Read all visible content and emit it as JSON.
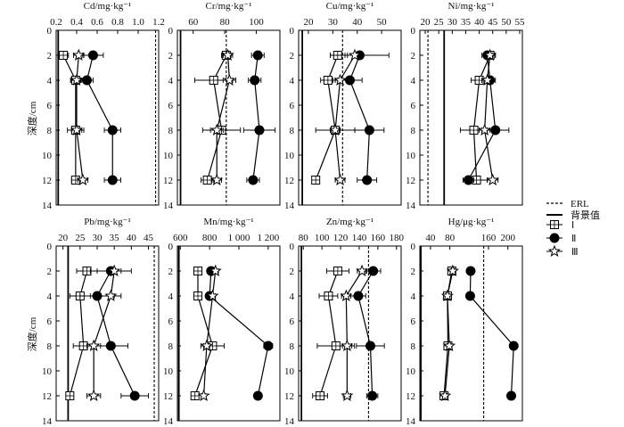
{
  "ylabel": "深度/cm",
  "legend": {
    "erl": "ERL",
    "background": "背景值",
    "s1": "Ⅰ",
    "s2": "Ⅱ",
    "s3": "Ⅲ"
  },
  "colors": {
    "ink": "#000000",
    "background": "#ffffff"
  },
  "chart_data": [
    {
      "type": "scatter",
      "title": "Cd/mg·kg⁻¹",
      "xlim": [
        0.2,
        1.2
      ],
      "xticks": [
        0.2,
        0.4,
        0.6,
        0.8,
        1.0,
        1.2
      ],
      "xticklabels": [
        "0.2",
        "0.4",
        "0.6",
        "0.8",
        "1.0",
        "1.2"
      ],
      "ylim": [
        0,
        14
      ],
      "depths": [
        2,
        4,
        8,
        12
      ],
      "background": 0.22,
      "erl": 1.17,
      "series": [
        {
          "name": "Ⅰ",
          "marker": "square",
          "values": [
            0.27,
            0.39,
            0.39,
            0.39
          ],
          "err": [
            0.05,
            0.05,
            0.08,
            0.04
          ]
        },
        {
          "name": "Ⅱ",
          "marker": "circle",
          "values": [
            0.56,
            0.5,
            0.75,
            0.75
          ],
          "err": [
            0.1,
            0.06,
            0.08,
            0.08
          ]
        },
        {
          "name": "Ⅲ",
          "marker": "star",
          "values": [
            0.42,
            0.4,
            0.4,
            0.46
          ],
          "err": [
            0.05,
            0.05,
            0.05,
            0.05
          ]
        }
      ]
    },
    {
      "type": "scatter",
      "title": "Cr/mg·kg⁻¹",
      "xlim": [
        50,
        115
      ],
      "xticks": [
        60,
        80,
        100
      ],
      "xticklabels": [
        "60",
        "80",
        "100"
      ],
      "ylim": [
        0,
        14
      ],
      "depths": [
        2,
        4,
        8,
        12
      ],
      "background": 52,
      "erl": 81,
      "series": [
        {
          "name": "Ⅰ",
          "marker": "square",
          "values": [
            81,
            73,
            78,
            69
          ],
          "err": [
            3,
            12,
            12,
            4
          ]
        },
        {
          "name": "Ⅱ",
          "marker": "circle",
          "values": [
            101,
            99,
            102,
            98
          ],
          "err": [
            4,
            4,
            10,
            4
          ]
        },
        {
          "name": "Ⅲ",
          "marker": "star",
          "values": [
            82,
            83,
            75,
            75
          ],
          "err": [
            3,
            4,
            4,
            3
          ]
        }
      ]
    },
    {
      "type": "scatter",
      "title": "Cu/mg·kg⁻¹",
      "xlim": [
        16,
        58
      ],
      "xticks": [
        20,
        30,
        40,
        50
      ],
      "xticklabels": [
        "20",
        "30",
        "40",
        "50"
      ],
      "ylim": [
        0,
        14
      ],
      "depths": [
        2,
        4,
        8,
        12
      ],
      "background": 17.5,
      "erl": 34,
      "series": [
        {
          "name": "Ⅰ",
          "marker": "square",
          "values": [
            32,
            28,
            31,
            23
          ],
          "err": [
            3,
            3,
            8,
            1
          ]
        },
        {
          "name": "Ⅱ",
          "marker": "circle",
          "values": [
            41,
            37,
            45,
            44
          ],
          "err": [
            12,
            5,
            6,
            4
          ]
        },
        {
          "name": "Ⅲ",
          "marker": "star",
          "values": [
            39,
            33,
            31,
            33
          ],
          "err": [
            3,
            3,
            2,
            2
          ]
        }
      ]
    },
    {
      "type": "scatter",
      "title": "Ni/mg·kg⁻¹",
      "xlim": [
        18,
        56
      ],
      "xticks": [
        20,
        25,
        30,
        35,
        40,
        45,
        50,
        55
      ],
      "xticklabels": [
        "20",
        "25",
        "30",
        "35",
        "40",
        "45",
        "50",
        "55"
      ],
      "ylim": [
        0,
        14
      ],
      "depths": [
        2,
        4,
        8,
        12
      ],
      "background": 27,
      "erl": 21,
      "series": [
        {
          "name": "Ⅰ",
          "marker": "square",
          "values": [
            44,
            40,
            38,
            39
          ],
          "err": [
            2,
            3,
            5,
            4
          ]
        },
        {
          "name": "Ⅱ",
          "marker": "circle",
          "values": [
            43,
            44,
            46,
            36
          ],
          "err": [
            2,
            2,
            5,
            2
          ]
        },
        {
          "name": "Ⅲ",
          "marker": "star",
          "values": [
            44,
            43,
            42,
            45
          ],
          "err": [
            2,
            2,
            2,
            2
          ]
        }
      ]
    },
    {
      "type": "scatter",
      "title": "Pb/mg·kg⁻¹",
      "xlim": [
        18,
        48
      ],
      "xticks": [
        20,
        25,
        30,
        35,
        40,
        45
      ],
      "xticklabels": [
        "20",
        "25",
        "30",
        "35",
        "40",
        "45"
      ],
      "ylim": [
        0,
        14
      ],
      "depths": [
        2,
        4,
        8,
        12
      ],
      "background": 21.5,
      "erl": 46.7,
      "series": [
        {
          "name": "Ⅰ",
          "marker": "square",
          "values": [
            27,
            25,
            26,
            22
          ],
          "err": [
            3,
            3,
            3,
            1
          ]
        },
        {
          "name": "Ⅱ",
          "marker": "circle",
          "values": [
            34,
            30,
            34,
            41
          ],
          "err": [
            6,
            5,
            5,
            4
          ]
        },
        {
          "name": "Ⅲ",
          "marker": "star",
          "values": [
            35,
            34,
            29,
            29
          ],
          "err": [
            2,
            3,
            2,
            2
          ]
        }
      ]
    },
    {
      "type": "scatter",
      "title": "Mn/mg·kg⁻¹",
      "xlim": [
        580,
        1280
      ],
      "xticks": [
        600,
        800,
        1000,
        1200
      ],
      "xticklabels": [
        "600",
        "800",
        "1 000",
        "1 200"
      ],
      "ylim": [
        0,
        14
      ],
      "depths": [
        2,
        4,
        8,
        12
      ],
      "background": 590,
      "series": [
        {
          "name": "Ⅰ",
          "marker": "square",
          "values": [
            720,
            720,
            820,
            700
          ],
          "err": [
            15,
            20,
            80,
            15
          ]
        },
        {
          "name": "Ⅱ",
          "marker": "circle",
          "values": [
            810,
            800,
            1200,
            1130
          ],
          "err": [
            20,
            20,
            30,
            15
          ]
        },
        {
          "name": "Ⅲ",
          "marker": "star",
          "values": [
            840,
            820,
            780,
            760
          ],
          "err": [
            20,
            20,
            20,
            15
          ]
        }
      ]
    },
    {
      "type": "scatter",
      "title": "Zn/mg·kg⁻¹",
      "xlim": [
        75,
        185
      ],
      "xticks": [
        80,
        100,
        120,
        140,
        160,
        180
      ],
      "xticklabels": [
        "80",
        "100",
        "120",
        "140",
        "160",
        "180"
      ],
      "ylim": [
        0,
        14
      ],
      "depths": [
        2,
        4,
        8,
        12
      ],
      "background": 78,
      "erl": 150,
      "series": [
        {
          "name": "Ⅰ",
          "marker": "square",
          "values": [
            117,
            107,
            115,
            98
          ],
          "err": [
            12,
            10,
            20,
            8
          ]
        },
        {
          "name": "Ⅱ",
          "marker": "circle",
          "values": [
            155,
            139,
            152,
            154
          ],
          "err": [
            8,
            8,
            15,
            6
          ]
        },
        {
          "name": "Ⅲ",
          "marker": "star",
          "values": [
            143,
            126,
            127,
            127
          ],
          "err": [
            5,
            5,
            5,
            4
          ]
        }
      ]
    },
    {
      "type": "scatter",
      "title": "Hg/μg·kg⁻¹",
      "xlim": [
        18,
        230
      ],
      "xticks": [
        40,
        80,
        160,
        200
      ],
      "xticklabels": [
        "40",
        "80",
        "160",
        "200"
      ],
      "ylim": [
        0,
        14
      ],
      "depths": [
        2,
        4,
        8,
        12
      ],
      "background": 20,
      "erl": 150,
      "series": [
        {
          "name": "Ⅰ",
          "marker": "square",
          "values": [
            84,
            75,
            76,
            68
          ],
          "err": [
            4,
            4,
            6,
            5
          ]
        },
        {
          "name": "Ⅱ",
          "marker": "circle",
          "values": [
            123,
            122,
            212,
            207
          ],
          "err": [
            4,
            4,
            5,
            4
          ]
        },
        {
          "name": "Ⅲ",
          "marker": "star",
          "values": [
            86,
            75,
            79,
            70
          ],
          "err": [
            4,
            4,
            5,
            4
          ]
        }
      ]
    }
  ]
}
